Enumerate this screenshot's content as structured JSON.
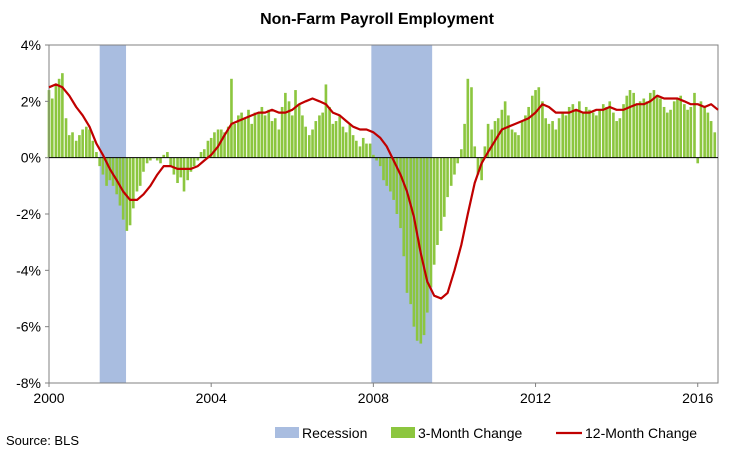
{
  "chart_data": {
    "type": "bar",
    "title": "Non-Farm Payroll Employment",
    "source": "Source: BLS",
    "x_range": [
      2000.0,
      2016.5
    ],
    "ylim": [
      -8,
      4
    ],
    "yticks": [
      4,
      2,
      0,
      -2,
      -4,
      -6,
      -8
    ],
    "ytick_labels": [
      "4%",
      "2%",
      "0%",
      "-2%",
      "-4%",
      "-6%",
      "-8%"
    ],
    "xticks": [
      2000,
      2004,
      2008,
      2012,
      2016
    ],
    "xtick_labels": [
      "2000",
      "2004",
      "2008",
      "2012",
      "2016"
    ],
    "legend_position": "bottom",
    "colors": {
      "recession": "#a9bde0",
      "bars": "#8cc63f",
      "line": "#c00000",
      "axis": "#000000"
    },
    "recessions": [
      {
        "start": 2001.25,
        "end": 2001.9
      },
      {
        "start": 2007.95,
        "end": 2009.45
      }
    ],
    "series": [
      {
        "name": "Recession",
        "kind": "shade"
      },
      {
        "name": "3-Month Change",
        "kind": "bar",
        "points": [
          [
            2000.0,
            2.4
          ],
          [
            2000.08,
            2.1
          ],
          [
            2000.17,
            2.6
          ],
          [
            2000.25,
            2.8
          ],
          [
            2000.33,
            3.0
          ],
          [
            2000.42,
            1.4
          ],
          [
            2000.5,
            0.8
          ],
          [
            2000.58,
            0.9
          ],
          [
            2000.67,
            0.6
          ],
          [
            2000.75,
            0.8
          ],
          [
            2000.83,
            1.0
          ],
          [
            2000.92,
            1.1
          ],
          [
            2001.0,
            1.0
          ],
          [
            2001.08,
            0.6
          ],
          [
            2001.17,
            0.2
          ],
          [
            2001.25,
            -0.3
          ],
          [
            2001.33,
            -0.6
          ],
          [
            2001.42,
            -1.0
          ],
          [
            2001.5,
            -0.8
          ],
          [
            2001.58,
            -1.0
          ],
          [
            2001.67,
            -1.3
          ],
          [
            2001.75,
            -1.7
          ],
          [
            2001.83,
            -2.2
          ],
          [
            2001.92,
            -2.6
          ],
          [
            2002.0,
            -2.4
          ],
          [
            2002.08,
            -1.8
          ],
          [
            2002.17,
            -1.2
          ],
          [
            2002.25,
            -1.0
          ],
          [
            2002.33,
            -0.5
          ],
          [
            2002.42,
            -0.2
          ],
          [
            2002.5,
            -0.1
          ],
          [
            2002.58,
            0.0
          ],
          [
            2002.67,
            -0.1
          ],
          [
            2002.75,
            -0.2
          ],
          [
            2002.83,
            0.1
          ],
          [
            2002.92,
            0.2
          ],
          [
            2003.0,
            -0.3
          ],
          [
            2003.08,
            -0.6
          ],
          [
            2003.17,
            -0.9
          ],
          [
            2003.25,
            -0.7
          ],
          [
            2003.33,
            -1.2
          ],
          [
            2003.42,
            -0.8
          ],
          [
            2003.5,
            -0.5
          ],
          [
            2003.58,
            -0.3
          ],
          [
            2003.67,
            -0.1
          ],
          [
            2003.75,
            0.2
          ],
          [
            2003.83,
            0.3
          ],
          [
            2003.92,
            0.6
          ],
          [
            2004.0,
            0.7
          ],
          [
            2004.08,
            0.9
          ],
          [
            2004.17,
            1.0
          ],
          [
            2004.25,
            1.0
          ],
          [
            2004.33,
            0.9
          ],
          [
            2004.42,
            1.1
          ],
          [
            2004.5,
            2.8
          ],
          [
            2004.58,
            1.2
          ],
          [
            2004.67,
            1.5
          ],
          [
            2004.75,
            1.6
          ],
          [
            2004.83,
            1.4
          ],
          [
            2004.92,
            1.7
          ],
          [
            2005.0,
            1.2
          ],
          [
            2005.08,
            1.6
          ],
          [
            2005.17,
            1.6
          ],
          [
            2005.25,
            1.8
          ],
          [
            2005.33,
            1.5
          ],
          [
            2005.42,
            1.7
          ],
          [
            2005.5,
            1.3
          ],
          [
            2005.58,
            1.4
          ],
          [
            2005.67,
            1.0
          ],
          [
            2005.75,
            1.8
          ],
          [
            2005.83,
            2.3
          ],
          [
            2005.92,
            2.0
          ],
          [
            2006.0,
            1.5
          ],
          [
            2006.08,
            2.4
          ],
          [
            2006.17,
            1.9
          ],
          [
            2006.25,
            1.5
          ],
          [
            2006.33,
            1.1
          ],
          [
            2006.42,
            0.8
          ],
          [
            2006.5,
            1.0
          ],
          [
            2006.58,
            1.3
          ],
          [
            2006.67,
            1.5
          ],
          [
            2006.75,
            1.6
          ],
          [
            2006.83,
            2.6
          ],
          [
            2006.92,
            1.8
          ],
          [
            2007.0,
            1.2
          ],
          [
            2007.08,
            1.3
          ],
          [
            2007.17,
            1.5
          ],
          [
            2007.25,
            1.1
          ],
          [
            2007.33,
            0.9
          ],
          [
            2007.42,
            1.2
          ],
          [
            2007.5,
            0.8
          ],
          [
            2007.58,
            0.6
          ],
          [
            2007.67,
            0.4
          ],
          [
            2007.75,
            0.7
          ],
          [
            2007.83,
            0.5
          ],
          [
            2007.92,
            0.5
          ],
          [
            2008.0,
            0.1
          ],
          [
            2008.08,
            -0.1
          ],
          [
            2008.17,
            -0.3
          ],
          [
            2008.25,
            -0.8
          ],
          [
            2008.33,
            -1.0
          ],
          [
            2008.42,
            -1.2
          ],
          [
            2008.5,
            -1.5
          ],
          [
            2008.58,
            -2.0
          ],
          [
            2008.67,
            -2.5
          ],
          [
            2008.75,
            -3.5
          ],
          [
            2008.83,
            -4.8
          ],
          [
            2008.92,
            -5.2
          ],
          [
            2009.0,
            -6.0
          ],
          [
            2009.08,
            -6.5
          ],
          [
            2009.17,
            -6.6
          ],
          [
            2009.25,
            -6.3
          ],
          [
            2009.33,
            -5.5
          ],
          [
            2009.42,
            -4.6
          ],
          [
            2009.5,
            -3.8
          ],
          [
            2009.58,
            -3.1
          ],
          [
            2009.67,
            -2.6
          ],
          [
            2009.75,
            -2.1
          ],
          [
            2009.83,
            -1.4
          ],
          [
            2009.92,
            -1.0
          ],
          [
            2010.0,
            -0.6
          ],
          [
            2010.08,
            -0.2
          ],
          [
            2010.17,
            0.3
          ],
          [
            2010.25,
            1.2
          ],
          [
            2010.33,
            2.8
          ],
          [
            2010.42,
            2.5
          ],
          [
            2010.5,
            0.4
          ],
          [
            2010.58,
            -0.6
          ],
          [
            2010.67,
            -0.8
          ],
          [
            2010.75,
            0.4
          ],
          [
            2010.83,
            1.2
          ],
          [
            2010.92,
            1.0
          ],
          [
            2011.0,
            1.3
          ],
          [
            2011.08,
            1.4
          ],
          [
            2011.17,
            1.7
          ],
          [
            2011.25,
            2.0
          ],
          [
            2011.33,
            1.5
          ],
          [
            2011.42,
            1.0
          ],
          [
            2011.5,
            0.9
          ],
          [
            2011.58,
            0.8
          ],
          [
            2011.67,
            1.3
          ],
          [
            2011.75,
            1.5
          ],
          [
            2011.83,
            1.8
          ],
          [
            2011.92,
            2.2
          ],
          [
            2012.0,
            2.4
          ],
          [
            2012.08,
            2.5
          ],
          [
            2012.17,
            2.0
          ],
          [
            2012.25,
            1.4
          ],
          [
            2012.33,
            1.2
          ],
          [
            2012.42,
            1.3
          ],
          [
            2012.5,
            1.0
          ],
          [
            2012.58,
            1.4
          ],
          [
            2012.67,
            1.6
          ],
          [
            2012.75,
            1.5
          ],
          [
            2012.83,
            1.8
          ],
          [
            2012.92,
            1.9
          ],
          [
            2013.0,
            1.7
          ],
          [
            2013.08,
            2.0
          ],
          [
            2013.17,
            1.6
          ],
          [
            2013.25,
            1.8
          ],
          [
            2013.33,
            1.7
          ],
          [
            2013.42,
            1.6
          ],
          [
            2013.5,
            1.5
          ],
          [
            2013.58,
            1.7
          ],
          [
            2013.67,
            1.9
          ],
          [
            2013.75,
            1.8
          ],
          [
            2013.83,
            2.0
          ],
          [
            2013.92,
            1.6
          ],
          [
            2014.0,
            1.3
          ],
          [
            2014.08,
            1.4
          ],
          [
            2014.17,
            1.9
          ],
          [
            2014.25,
            2.2
          ],
          [
            2014.33,
            2.4
          ],
          [
            2014.42,
            2.3
          ],
          [
            2014.5,
            1.9
          ],
          [
            2014.58,
            2.0
          ],
          [
            2014.67,
            2.1
          ],
          [
            2014.75,
            2.0
          ],
          [
            2014.83,
            2.3
          ],
          [
            2014.92,
            2.4
          ],
          [
            2015.0,
            2.2
          ],
          [
            2015.08,
            2.1
          ],
          [
            2015.17,
            1.8
          ],
          [
            2015.25,
            1.6
          ],
          [
            2015.33,
            1.7
          ],
          [
            2015.42,
            2.0
          ],
          [
            2015.5,
            2.1
          ],
          [
            2015.58,
            2.2
          ],
          [
            2015.67,
            1.9
          ],
          [
            2015.75,
            1.7
          ],
          [
            2015.83,
            1.8
          ],
          [
            2015.92,
            2.3
          ],
          [
            2016.0,
            -0.2
          ],
          [
            2016.08,
            2.0
          ],
          [
            2016.17,
            1.8
          ],
          [
            2016.25,
            1.6
          ],
          [
            2016.33,
            1.3
          ],
          [
            2016.42,
            0.9
          ]
        ]
      },
      {
        "name": "12-Month Change",
        "kind": "line",
        "points": [
          [
            2000.0,
            2.5
          ],
          [
            2000.17,
            2.6
          ],
          [
            2000.33,
            2.5
          ],
          [
            2000.5,
            2.2
          ],
          [
            2000.67,
            1.8
          ],
          [
            2000.83,
            1.5
          ],
          [
            2001.0,
            1.1
          ],
          [
            2001.17,
            0.5
          ],
          [
            2001.33,
            0.1
          ],
          [
            2001.5,
            -0.4
          ],
          [
            2001.67,
            -0.8
          ],
          [
            2001.83,
            -1.2
          ],
          [
            2002.0,
            -1.5
          ],
          [
            2002.17,
            -1.5
          ],
          [
            2002.33,
            -1.3
          ],
          [
            2002.5,
            -1.0
          ],
          [
            2002.67,
            -0.6
          ],
          [
            2002.83,
            -0.3
          ],
          [
            2003.0,
            -0.3
          ],
          [
            2003.17,
            -0.4
          ],
          [
            2003.33,
            -0.4
          ],
          [
            2003.5,
            -0.4
          ],
          [
            2003.67,
            -0.3
          ],
          [
            2003.83,
            -0.1
          ],
          [
            2004.0,
            0.1
          ],
          [
            2004.17,
            0.4
          ],
          [
            2004.33,
            0.8
          ],
          [
            2004.5,
            1.2
          ],
          [
            2004.67,
            1.3
          ],
          [
            2004.83,
            1.4
          ],
          [
            2005.0,
            1.5
          ],
          [
            2005.17,
            1.6
          ],
          [
            2005.33,
            1.6
          ],
          [
            2005.5,
            1.7
          ],
          [
            2005.67,
            1.6
          ],
          [
            2005.83,
            1.6
          ],
          [
            2006.0,
            1.7
          ],
          [
            2006.17,
            1.9
          ],
          [
            2006.33,
            2.0
          ],
          [
            2006.5,
            2.1
          ],
          [
            2006.67,
            2.0
          ],
          [
            2006.83,
            1.9
          ],
          [
            2007.0,
            1.6
          ],
          [
            2007.17,
            1.5
          ],
          [
            2007.33,
            1.3
          ],
          [
            2007.5,
            1.1
          ],
          [
            2007.67,
            1.0
          ],
          [
            2007.83,
            1.0
          ],
          [
            2008.0,
            0.9
          ],
          [
            2008.17,
            0.7
          ],
          [
            2008.33,
            0.4
          ],
          [
            2008.5,
            -0.1
          ],
          [
            2008.67,
            -0.6
          ],
          [
            2008.83,
            -1.2
          ],
          [
            2009.0,
            -2.1
          ],
          [
            2009.17,
            -3.4
          ],
          [
            2009.33,
            -4.4
          ],
          [
            2009.5,
            -4.9
          ],
          [
            2009.67,
            -5.0
          ],
          [
            2009.83,
            -4.8
          ],
          [
            2010.0,
            -4.0
          ],
          [
            2010.17,
            -3.1
          ],
          [
            2010.33,
            -2.0
          ],
          [
            2010.5,
            -0.9
          ],
          [
            2010.67,
            -0.2
          ],
          [
            2010.83,
            0.2
          ],
          [
            2011.0,
            0.6
          ],
          [
            2011.17,
            1.0
          ],
          [
            2011.33,
            1.1
          ],
          [
            2011.5,
            1.2
          ],
          [
            2011.67,
            1.3
          ],
          [
            2011.83,
            1.4
          ],
          [
            2012.0,
            1.6
          ],
          [
            2012.17,
            1.9
          ],
          [
            2012.33,
            1.8
          ],
          [
            2012.5,
            1.6
          ],
          [
            2012.67,
            1.6
          ],
          [
            2012.83,
            1.6
          ],
          [
            2013.0,
            1.7
          ],
          [
            2013.17,
            1.6
          ],
          [
            2013.33,
            1.6
          ],
          [
            2013.5,
            1.7
          ],
          [
            2013.67,
            1.7
          ],
          [
            2013.83,
            1.8
          ],
          [
            2014.0,
            1.7
          ],
          [
            2014.17,
            1.7
          ],
          [
            2014.33,
            1.8
          ],
          [
            2014.5,
            1.9
          ],
          [
            2014.67,
            1.9
          ],
          [
            2014.83,
            2.0
          ],
          [
            2015.0,
            2.2
          ],
          [
            2015.17,
            2.1
          ],
          [
            2015.33,
            2.1
          ],
          [
            2015.5,
            2.1
          ],
          [
            2015.67,
            2.0
          ],
          [
            2015.83,
            1.9
          ],
          [
            2016.0,
            1.9
          ],
          [
            2016.17,
            1.8
          ],
          [
            2016.33,
            1.9
          ],
          [
            2016.5,
            1.7
          ]
        ]
      }
    ]
  }
}
